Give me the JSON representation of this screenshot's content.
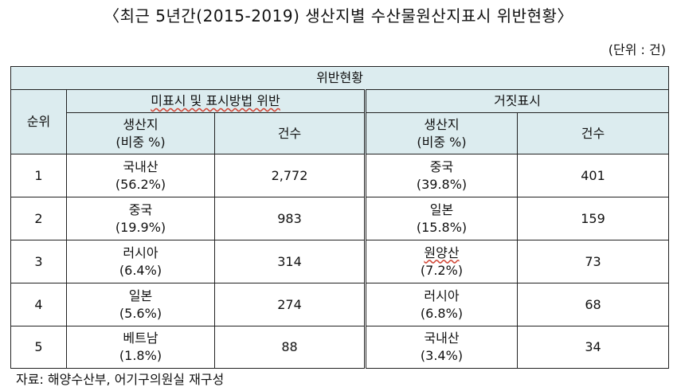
{
  "title": "〈최근 5년간(2015-2019) 생산지별 수산물원산지표시 위반현황〉",
  "unit": "(단위 : 건)",
  "table": {
    "header_main": "위반현황",
    "rank_header": "순위",
    "group1_header": "미표시 및 표시방법 위반",
    "group2_header": "거짓표시",
    "origin_header_line1": "생산지",
    "origin_header_line2": "(비중 %)",
    "count_header": "건수",
    "rows": [
      {
        "rank": "1",
        "g1_origin": "국내산",
        "g1_share": "(56.2%)",
        "g1_count": "2,772",
        "g2_origin": "중국",
        "g2_share": "(39.8%)",
        "g2_count": "401"
      },
      {
        "rank": "2",
        "g1_origin": "중국",
        "g1_share": "(19.9%)",
        "g1_count": "983",
        "g2_origin": "일본",
        "g2_share": "(15.8%)",
        "g2_count": "159"
      },
      {
        "rank": "3",
        "g1_origin": "러시아",
        "g1_share": "(6.4%)",
        "g1_count": "314",
        "g2_origin": "원양산",
        "g2_share": "(7.2%)",
        "g2_count": "73"
      },
      {
        "rank": "4",
        "g1_origin": "일본",
        "g1_share": "(5.6%)",
        "g1_count": "274",
        "g2_origin": "러시아",
        "g2_share": "(6.8%)",
        "g2_count": "68"
      },
      {
        "rank": "5",
        "g1_origin": "베트남",
        "g1_share": "(1.8%)",
        "g1_count": "88",
        "g2_origin": "국내산",
        "g2_share": "(3.4%)",
        "g2_count": "34"
      }
    ]
  },
  "source_note": "자료: 해양수산부, 어기구의원실 재구성",
  "colors": {
    "header_bg": "#dcecef",
    "border": "#222222",
    "spellcheck_underline": "#d24a3a"
  }
}
